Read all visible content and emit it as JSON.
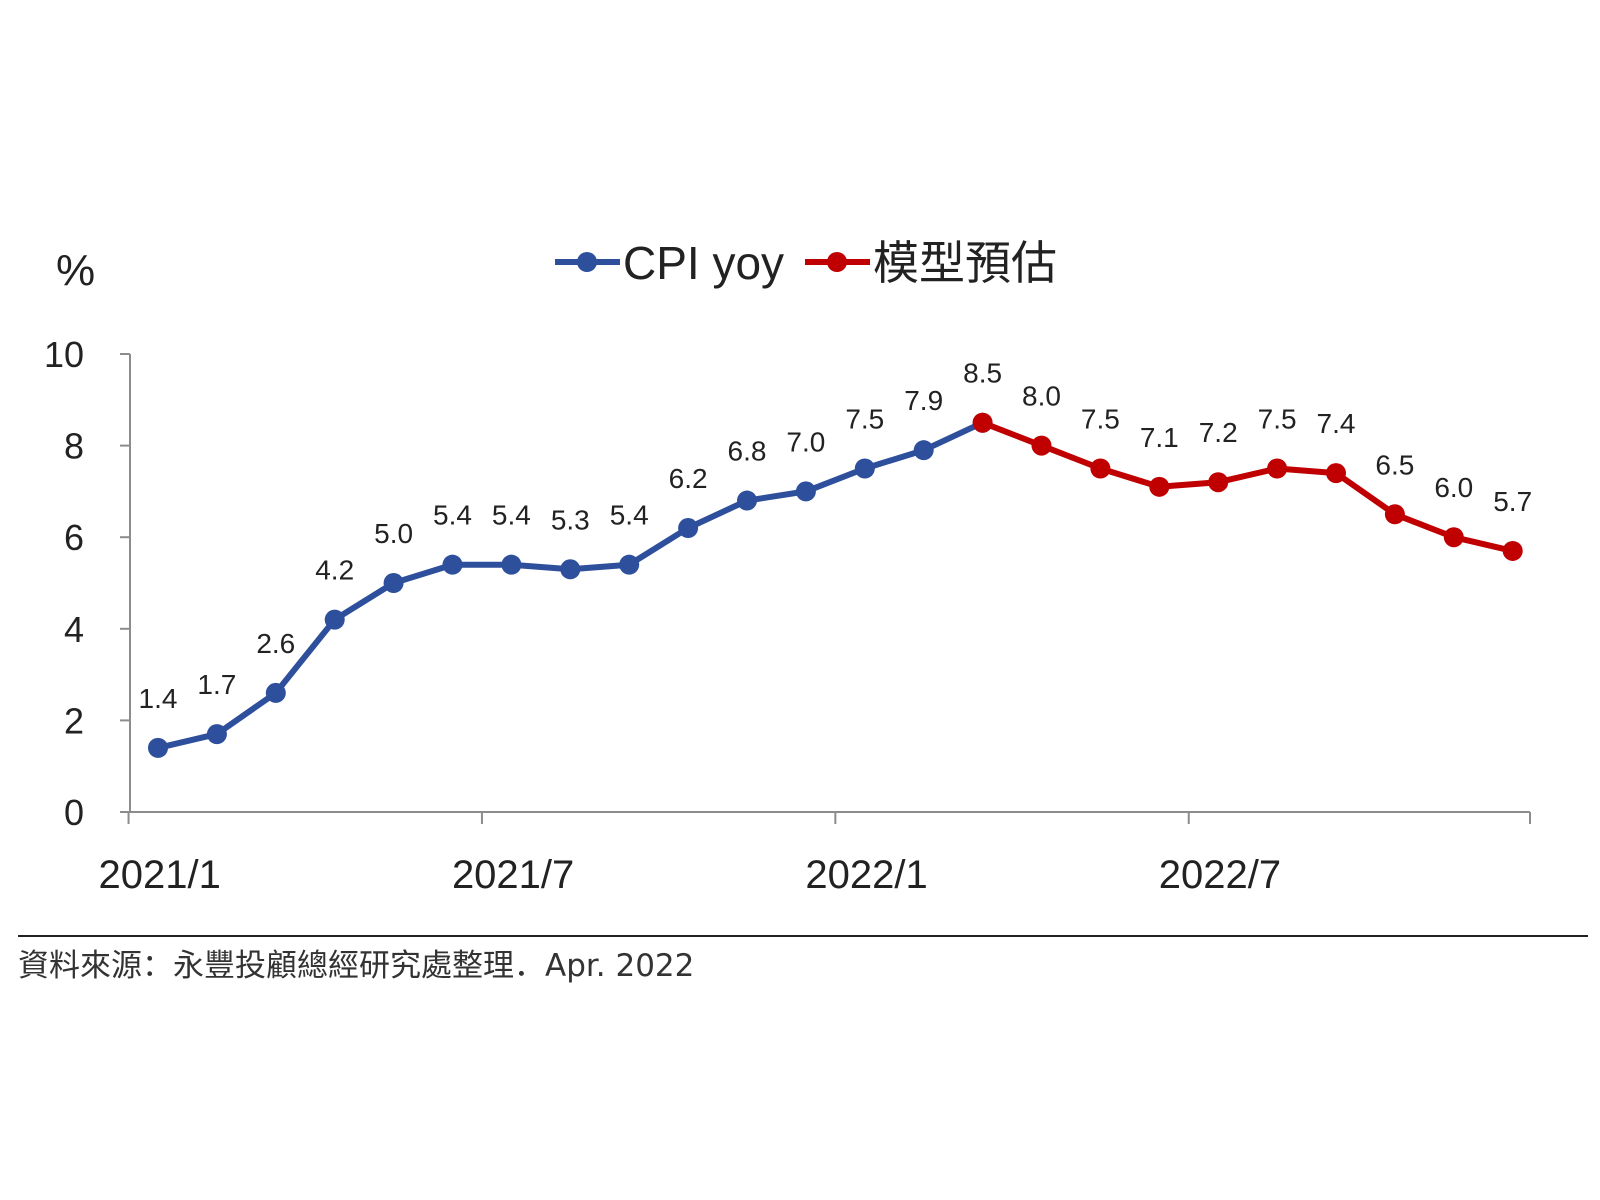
{
  "chart_data": {
    "type": "line",
    "unit_label": "%",
    "x_tick_labels": [
      "2021/1",
      "2021/7",
      "2022/1",
      "2022/7"
    ],
    "ylim": [
      0,
      10
    ],
    "y_ticks": [
      0,
      2,
      4,
      6,
      8,
      10
    ],
    "grid": false,
    "legend_position": "top",
    "series": [
      {
        "name": "CPI yoy",
        "color": "#2e4f9c",
        "x": [
          "2021/1",
          "2021/2",
          "2021/3",
          "2021/4",
          "2021/5",
          "2021/6",
          "2021/7",
          "2021/8",
          "2021/9",
          "2021/10",
          "2021/11",
          "2021/12",
          "2022/1",
          "2022/2",
          "2022/3"
        ],
        "values": [
          1.4,
          1.7,
          2.6,
          4.2,
          5.0,
          5.4,
          5.4,
          5.3,
          5.4,
          6.2,
          6.8,
          7.0,
          7.5,
          7.9,
          8.5
        ],
        "labels": [
          "1.4",
          "1.7",
          "2.6",
          "4.2",
          "5.0",
          "5.4",
          "5.4",
          "5.3",
          "5.4",
          "6.2",
          "6.8",
          "7.0",
          "7.5",
          "7.9",
          ""
        ]
      },
      {
        "name": "模型預估",
        "color": "#c00000",
        "x": [
          "2022/3",
          "2022/4",
          "2022/5",
          "2022/6",
          "2022/7",
          "2022/8",
          "2022/9",
          "2022/10",
          "2022/11",
          "2022/12"
        ],
        "values": [
          8.5,
          8.0,
          7.5,
          7.1,
          7.2,
          7.5,
          7.4,
          6.5,
          6.0,
          5.7
        ],
        "labels": [
          "8.5",
          "8.0",
          "7.5",
          "7.1",
          "7.2",
          "7.5",
          "7.4",
          "6.5",
          "6.0",
          "5.7"
        ]
      }
    ]
  },
  "source_note": "資料來源：永豐投顧總經研究處整理．Apr. 2022"
}
